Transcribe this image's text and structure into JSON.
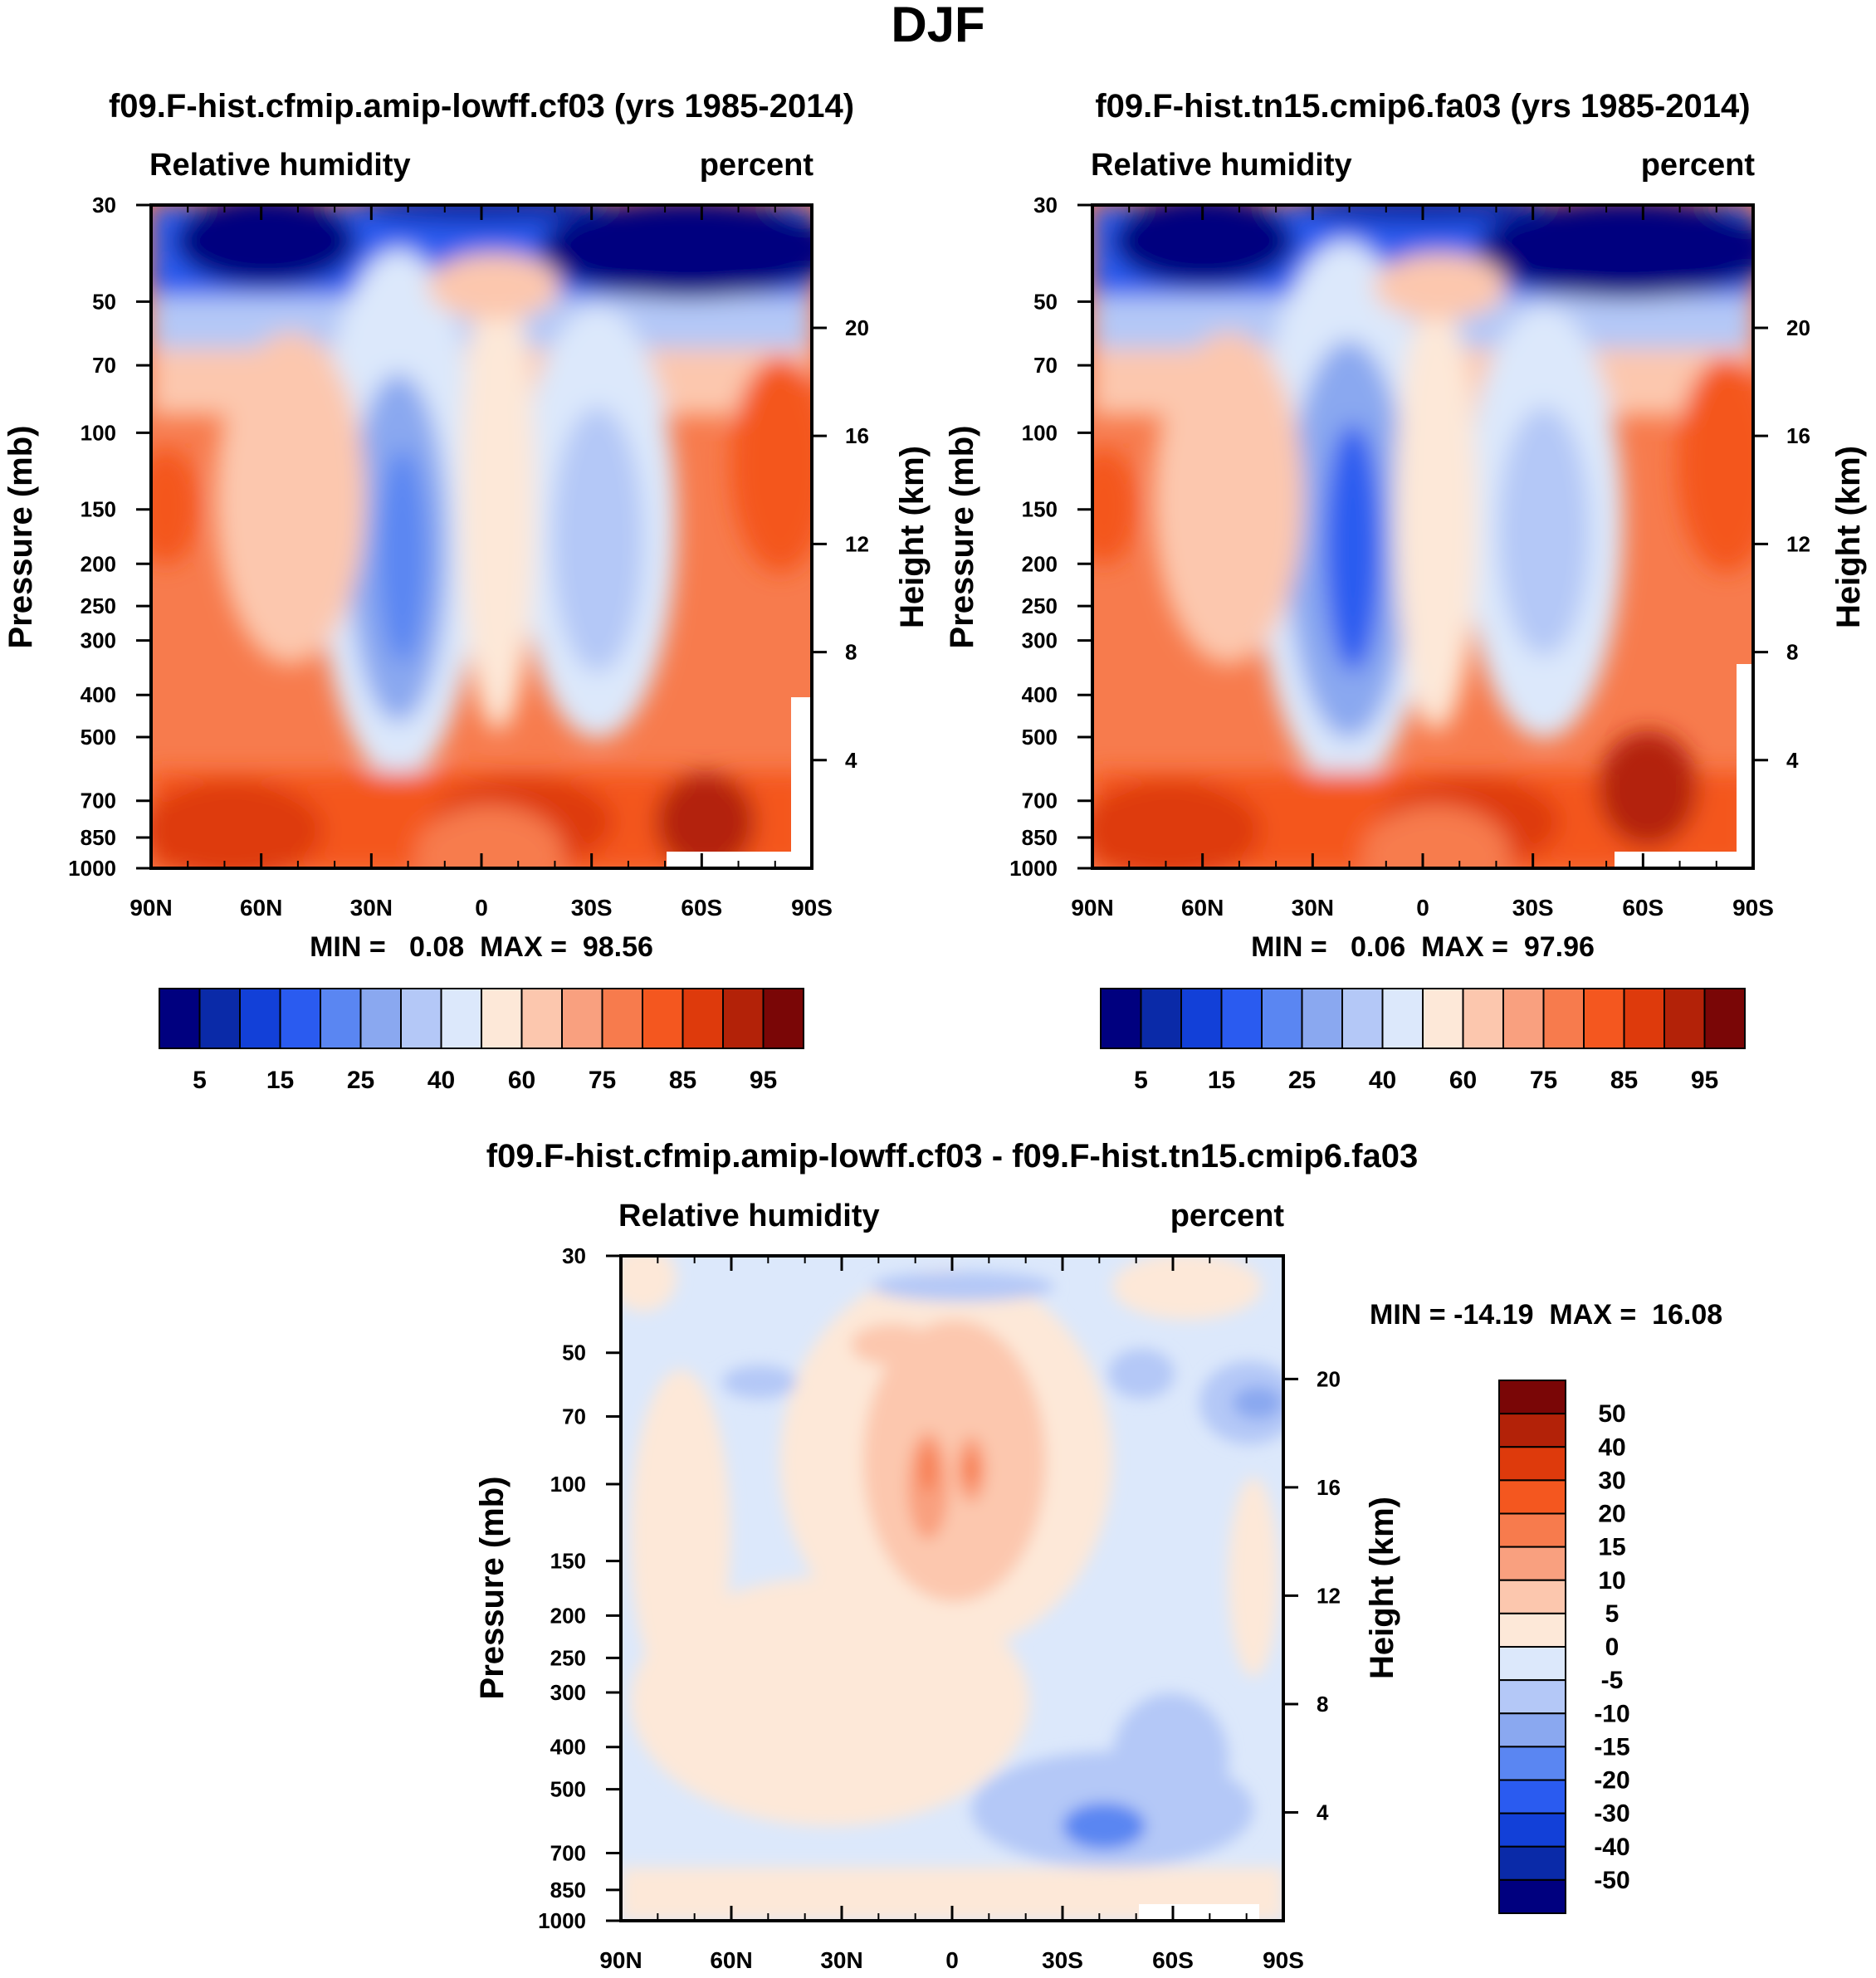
{
  "figure_title": "DJF",
  "colors": {
    "rh_levels": [
      "#00007f",
      "#0a2aa8",
      "#1240d8",
      "#2a5bf0",
      "#5a86f2",
      "#8aa8f0",
      "#b4c8f7",
      "#dce8fb",
      "#fde8d8",
      "#fcc7ae",
      "#f9a07f",
      "#f77b4d",
      "#f4571f",
      "#de3a0c",
      "#b32208",
      "#7a0606"
    ],
    "diff_levels": [
      "#7a0606",
      "#b32208",
      "#de3a0c",
      "#f4571f",
      "#f77b4d",
      "#f9a07f",
      "#fcc7ae",
      "#fde8d8",
      "#dce8fb",
      "#b4c8f7",
      "#8aa8f0",
      "#5a86f2",
      "#2a5bf0",
      "#1240d8",
      "#0a2aa8",
      "#00007f"
    ]
  },
  "chart_data": [
    {
      "type": "heatmap",
      "title": "f09.F-hist.cfmip.amip-lowff.cf03 (yrs 1985-2014)",
      "left_label": "Relative humidity",
      "right_label": "percent",
      "ylabel": "Pressure (mb)",
      "ylabel_right": "Height (km)",
      "x_ticks": [
        "90N",
        "60N",
        "30N",
        "0",
        "30S",
        "60S",
        "90S"
      ],
      "y_ticks": [
        "30",
        "50",
        "70",
        "100",
        "150",
        "200",
        "250",
        "300",
        "400",
        "500",
        "700",
        "850",
        "1000"
      ],
      "y_values": [
        30,
        50,
        70,
        100,
        150,
        200,
        250,
        300,
        400,
        500,
        700,
        850,
        1000
      ],
      "height_ticks": [
        "20",
        "16",
        "12",
        "8",
        "4"
      ],
      "height_values": [
        20,
        16,
        12,
        8,
        4
      ],
      "stats_text": "MIN =   0.08  MAX =  98.56",
      "colorbar_labels": [
        "5",
        "15",
        "25",
        "40",
        "60",
        "75",
        "85",
        "95"
      ],
      "colorbar_label_edges": [
        1,
        3,
        5,
        7,
        9,
        11,
        13,
        15
      ],
      "field_min": 0.08,
      "field_max": 98.56
    },
    {
      "type": "heatmap",
      "title": "f09.F-hist.tn15.cmip6.fa03 (yrs 1985-2014)",
      "left_label": "Relative humidity",
      "right_label": "percent",
      "ylabel": "Pressure (mb)",
      "ylabel_right": "Height (km)",
      "x_ticks": [
        "90N",
        "60N",
        "30N",
        "0",
        "30S",
        "60S",
        "90S"
      ],
      "y_ticks": [
        "30",
        "50",
        "70",
        "100",
        "150",
        "200",
        "250",
        "300",
        "400",
        "500",
        "700",
        "850",
        "1000"
      ],
      "y_values": [
        30,
        50,
        70,
        100,
        150,
        200,
        250,
        300,
        400,
        500,
        700,
        850,
        1000
      ],
      "height_ticks": [
        "20",
        "16",
        "12",
        "8",
        "4"
      ],
      "height_values": [
        20,
        16,
        12,
        8,
        4
      ],
      "stats_text": "MIN =   0.06  MAX =  97.96",
      "colorbar_labels": [
        "5",
        "15",
        "25",
        "40",
        "60",
        "75",
        "85",
        "95"
      ],
      "colorbar_label_edges": [
        1,
        3,
        5,
        7,
        9,
        11,
        13,
        15
      ],
      "field_min": 0.06,
      "field_max": 97.96
    },
    {
      "type": "heatmap",
      "title": "f09.F-hist.cfmip.amip-lowff.cf03 - f09.F-hist.tn15.cmip6.fa03",
      "left_label": "Relative humidity",
      "right_label": "percent",
      "ylabel": "Pressure (mb)",
      "ylabel_right": "Height (km)",
      "x_ticks": [
        "90N",
        "60N",
        "30N",
        "0",
        "30S",
        "60S",
        "90S"
      ],
      "y_ticks": [
        "30",
        "50",
        "70",
        "100",
        "150",
        "200",
        "250",
        "300",
        "400",
        "500",
        "700",
        "850",
        "1000"
      ],
      "y_values": [
        30,
        50,
        70,
        100,
        150,
        200,
        250,
        300,
        400,
        500,
        700,
        850,
        1000
      ],
      "height_ticks": [
        "20",
        "16",
        "12",
        "8",
        "4"
      ],
      "height_values": [
        20,
        16,
        12,
        8,
        4
      ],
      "stats_text": "MIN = -14.19  MAX =  16.08",
      "colorbar_labels": [
        "50",
        "40",
        "30",
        "20",
        "15",
        "10",
        "5",
        "0",
        "-5",
        "-10",
        "-15",
        "-20",
        "-30",
        "-40",
        "-50"
      ],
      "field_min": -14.19,
      "field_max": 16.08
    }
  ]
}
